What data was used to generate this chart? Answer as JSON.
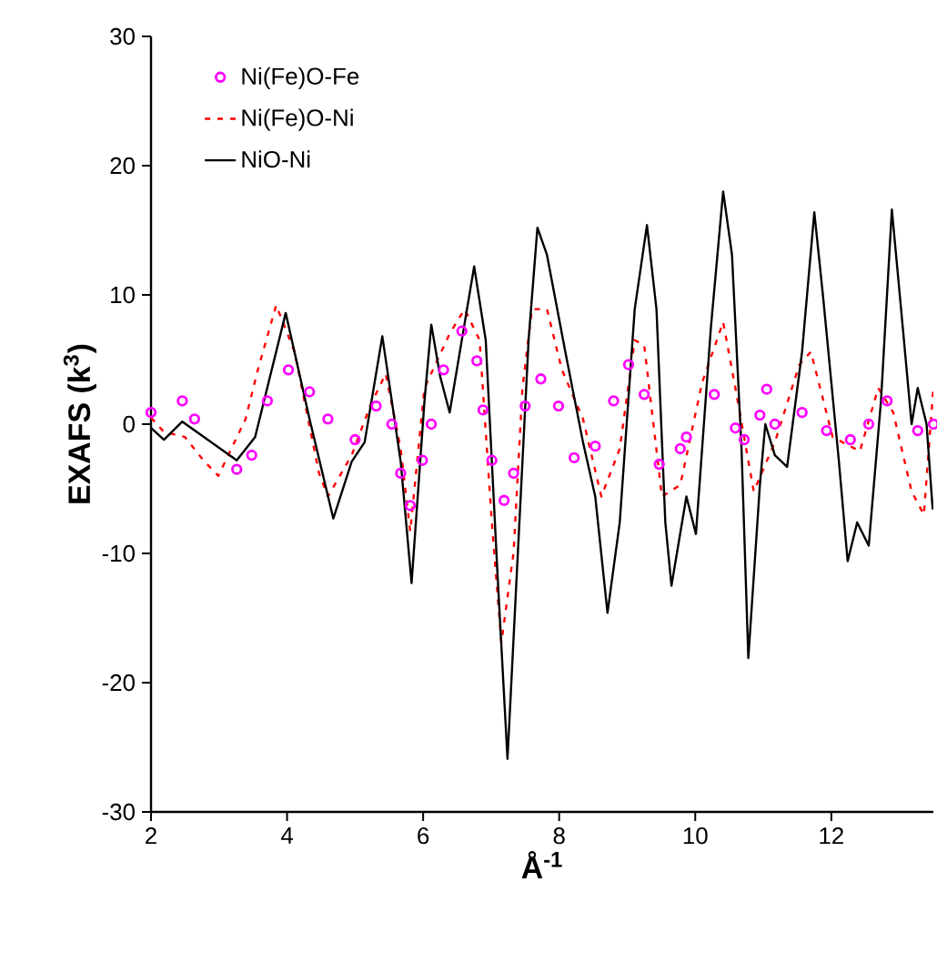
{
  "chart_data": {
    "type": "line",
    "xlabel": "Å$^{-1}$",
    "ylabel": "EXAFS (k$^{3}$)",
    "xlim": [
      2,
      13.5
    ],
    "ylim": [
      -30,
      30
    ],
    "xticks": [
      2,
      4,
      6,
      8,
      10,
      12
    ],
    "yticks": [
      -30,
      -20,
      -10,
      0,
      10,
      20,
      30
    ],
    "grid": false,
    "legend": "top left",
    "series": [
      {
        "name": "Ni(Fe)O-Fe",
        "type": "scatter",
        "marker": "circle",
        "color": "#ff00ff",
        "x": [
          2.0,
          2.46,
          2.64,
          3.26,
          3.48,
          3.71,
          4.02,
          4.33,
          4.6,
          5.0,
          5.31,
          5.54,
          5.67,
          5.81,
          5.99,
          6.12,
          6.3,
          6.57,
          6.79,
          6.88,
          7.01,
          7.19,
          7.33,
          7.5,
          7.73,
          7.99,
          8.22,
          8.53,
          8.8,
          9.02,
          9.25,
          9.47,
          9.78,
          9.87,
          10.28,
          10.59,
          10.72,
          10.95,
          11.05,
          11.17,
          11.57,
          11.93,
          12.28,
          12.55,
          12.82,
          13.27,
          13.5
        ],
        "values": [
          0.9,
          1.8,
          0.4,
          -3.5,
          -2.4,
          1.8,
          4.2,
          2.5,
          0.4,
          -1.2,
          1.4,
          0,
          -3.8,
          -6.3,
          -2.8,
          0,
          4.2,
          7.2,
          4.9,
          1.1,
          -2.8,
          -5.9,
          -3.8,
          1.4,
          3.5,
          1.4,
          -2.6,
          -1.7,
          1.8,
          4.6,
          2.3,
          -3.1,
          -1.9,
          -1.0,
          2.3,
          -0.3,
          -1.2,
          0.7,
          2.7,
          0,
          0.9,
          -0.5,
          -1.2,
          0,
          1.8,
          -0.5,
          0
        ]
      },
      {
        "name": "Ni(Fe)O-Ni",
        "line_style": "dashed",
        "color": "#ff0000",
        "x": [
          2.0,
          2.19,
          2.5,
          2.77,
          2.99,
          3.39,
          3.57,
          3.84,
          4.11,
          4.47,
          4.6,
          4.95,
          5.22,
          5.45,
          5.67,
          5.81,
          6.02,
          6.39,
          6.61,
          6.83,
          7.01,
          7.15,
          7.33,
          7.46,
          7.6,
          7.82,
          8.04,
          8.35,
          8.62,
          8.89,
          9.11,
          9.25,
          9.51,
          9.78,
          10.1,
          10.41,
          10.59,
          10.86,
          11.17,
          11.53,
          11.7,
          12.02,
          12.42,
          12.69,
          12.91,
          13.18,
          13.36,
          13.5
        ],
        "values": [
          0.5,
          -0.6,
          -1.0,
          -2.8,
          -4.0,
          0.4,
          4.2,
          9.2,
          5.6,
          -3.8,
          -5.6,
          -2.4,
          1.4,
          3.9,
          -1.9,
          -8.3,
          2.8,
          7.0,
          8.9,
          6.5,
          -7.6,
          -16.9,
          -9.9,
          2.8,
          8.9,
          8.9,
          4.2,
          0.4,
          -5.6,
          -1.9,
          6.5,
          6.1,
          -5.6,
          -4.7,
          3.2,
          7.9,
          2.8,
          -5.2,
          -1.4,
          4.6,
          5.6,
          -1.0,
          -2.1,
          2.8,
          0.9,
          -5.2,
          -7.0,
          2.8
        ]
      },
      {
        "name": "NiO-Ni",
        "line_style": "solid",
        "color": "#000000",
        "x": [
          2.0,
          2.19,
          2.46,
          3.26,
          3.53,
          3.98,
          4.33,
          4.68,
          4.95,
          5.14,
          5.4,
          5.67,
          5.83,
          6.02,
          6.12,
          6.25,
          6.39,
          6.75,
          6.92,
          7.1,
          7.24,
          7.37,
          7.55,
          7.68,
          7.82,
          8.09,
          8.35,
          8.53,
          8.71,
          8.89,
          9.11,
          9.29,
          9.43,
          9.56,
          9.65,
          9.87,
          10.01,
          10.23,
          10.41,
          10.54,
          10.68,
          10.78,
          10.95,
          11.03,
          11.17,
          11.35,
          11.57,
          11.75,
          11.88,
          12.11,
          12.24,
          12.38,
          12.55,
          12.73,
          12.89,
          13.05,
          13.18,
          13.27,
          13.4,
          13.49
        ],
        "values": [
          -0.3,
          -1.2,
          0.2,
          -2.8,
          -1.0,
          8.6,
          0.4,
          -7.3,
          -2.9,
          -1.4,
          6.8,
          -2.9,
          -12.3,
          1.8,
          7.7,
          3.7,
          0.9,
          12.2,
          6.5,
          -12.3,
          -25.9,
          -12.3,
          6.5,
          15.2,
          13.1,
          5.6,
          -1.4,
          -5.6,
          -14.6,
          -7.6,
          8.9,
          15.4,
          8.9,
          -7.6,
          -12.5,
          -5.6,
          -8.5,
          7.5,
          18.0,
          13.1,
          -1.9,
          -18.1,
          -4.7,
          0,
          -2.4,
          -3.3,
          5.6,
          16.4,
          9.8,
          -2.8,
          -10.6,
          -7.6,
          -9.4,
          1.8,
          16.6,
          7.5,
          0,
          2.8,
          0,
          -6.6
        ]
      }
    ]
  }
}
